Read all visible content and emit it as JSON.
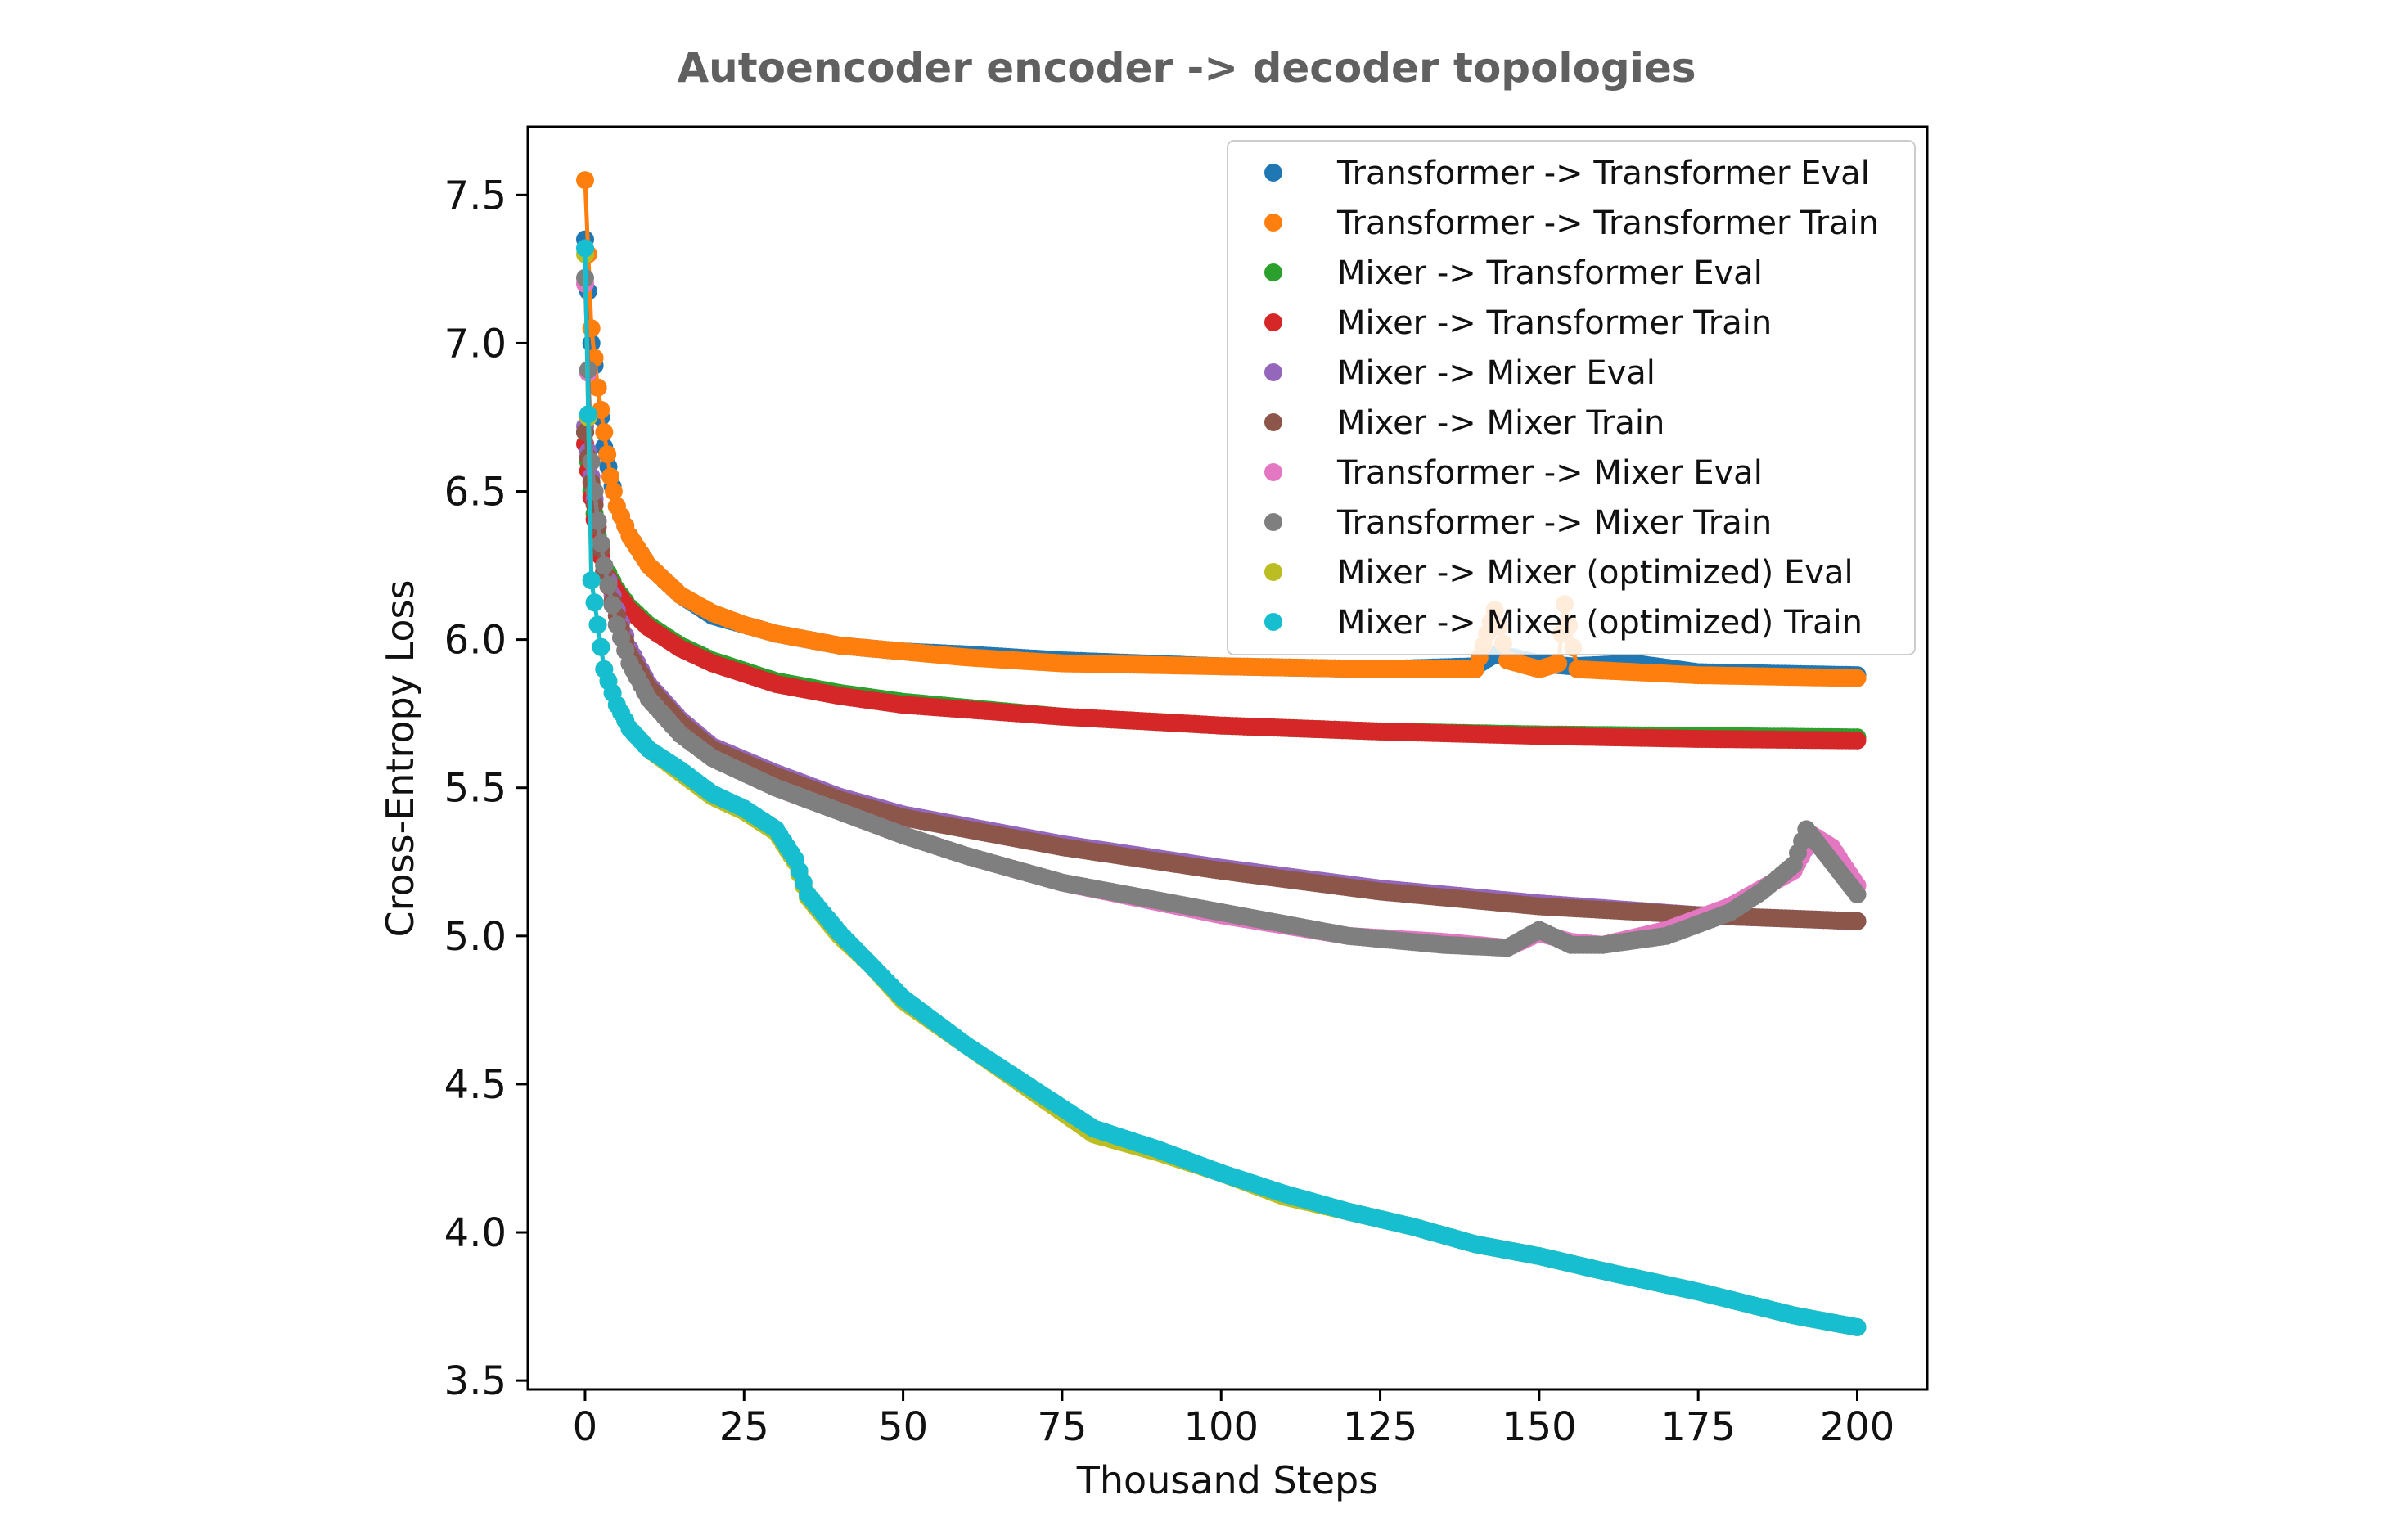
{
  "chart_data": {
    "type": "line",
    "title": "Autoencoder encoder -> decoder topologies",
    "xlabel": "Thousand Steps",
    "ylabel": "Cross-Entropy Loss",
    "xlim": [
      -9,
      211
    ],
    "ylim": [
      3.47,
      7.73
    ],
    "xticks": [
      0,
      25,
      50,
      75,
      100,
      125,
      150,
      175,
      200
    ],
    "yticks": [
      3.5,
      4.0,
      4.5,
      5.0,
      5.5,
      6.0,
      6.5,
      7.0,
      7.5
    ],
    "grid": false,
    "legend_position": "top-right",
    "series": [
      {
        "name": "Transformer -> Transformer Eval",
        "color": "#1f77b4",
        "x": [
          0,
          1,
          2,
          3,
          5,
          7,
          10,
          15,
          20,
          25,
          30,
          40,
          50,
          60,
          75,
          100,
          125,
          140,
          143,
          146,
          150,
          155,
          165,
          175,
          200
        ],
        "y": [
          7.35,
          7.0,
          6.85,
          6.65,
          6.45,
          6.35,
          6.25,
          6.15,
          6.08,
          6.05,
          6.02,
          5.98,
          5.96,
          5.95,
          5.93,
          5.91,
          5.9,
          5.91,
          5.95,
          5.94,
          5.92,
          5.91,
          5.92,
          5.89,
          5.88
        ]
      },
      {
        "name": "Transformer -> Transformer Train",
        "color": "#ff7f0e",
        "x": [
          0,
          1,
          2,
          3,
          4,
          5,
          7,
          10,
          15,
          20,
          25,
          30,
          40,
          50,
          60,
          75,
          100,
          125,
          140,
          143,
          145,
          150,
          153,
          154,
          156,
          175,
          200
        ],
        "y": [
          7.55,
          7.05,
          6.85,
          6.7,
          6.55,
          6.45,
          6.35,
          6.25,
          6.15,
          6.09,
          6.05,
          6.02,
          5.98,
          5.96,
          5.94,
          5.92,
          5.91,
          5.9,
          5.9,
          6.1,
          5.93,
          5.9,
          5.92,
          6.12,
          5.9,
          5.88,
          5.87
        ]
      },
      {
        "name": "Mixer -> Transformer Eval",
        "color": "#2ca02c",
        "x": [
          0,
          1,
          2,
          3,
          5,
          7,
          10,
          15,
          20,
          30,
          40,
          50,
          75,
          100,
          125,
          150,
          175,
          200
        ],
        "y": [
          6.7,
          6.5,
          6.35,
          6.25,
          6.17,
          6.11,
          6.05,
          5.98,
          5.93,
          5.86,
          5.82,
          5.79,
          5.74,
          5.71,
          5.69,
          5.68,
          5.675,
          5.67
        ]
      },
      {
        "name": "Mixer -> Transformer Train",
        "color": "#d62728",
        "x": [
          0,
          1,
          2,
          3,
          5,
          7,
          10,
          15,
          20,
          30,
          40,
          50,
          75,
          100,
          125,
          150,
          175,
          200
        ],
        "y": [
          6.66,
          6.48,
          6.33,
          6.23,
          6.16,
          6.1,
          6.04,
          5.97,
          5.92,
          5.85,
          5.81,
          5.78,
          5.74,
          5.71,
          5.69,
          5.675,
          5.665,
          5.66
        ]
      },
      {
        "name": "Mixer -> Mixer Eval",
        "color": "#9467bd",
        "x": [
          0,
          1,
          2,
          3,
          5,
          7,
          10,
          15,
          20,
          30,
          40,
          50,
          75,
          100,
          125,
          150,
          175,
          200
        ],
        "y": [
          6.72,
          6.55,
          6.4,
          6.25,
          6.1,
          5.97,
          5.85,
          5.73,
          5.64,
          5.55,
          5.47,
          5.41,
          5.31,
          5.23,
          5.16,
          5.11,
          5.07,
          5.05
        ]
      },
      {
        "name": "Mixer -> Mixer Train",
        "color": "#8c564b",
        "x": [
          0,
          1,
          2,
          3,
          5,
          7,
          10,
          15,
          20,
          30,
          40,
          50,
          75,
          100,
          125,
          150,
          175,
          200
        ],
        "y": [
          6.7,
          6.53,
          6.38,
          6.23,
          6.08,
          5.95,
          5.84,
          5.72,
          5.63,
          5.54,
          5.46,
          5.4,
          5.3,
          5.22,
          5.15,
          5.1,
          5.07,
          5.05
        ]
      },
      {
        "name": "Transformer -> Mixer Eval",
        "color": "#e377c2",
        "x": [
          0,
          1,
          2,
          3,
          5,
          7,
          10,
          15,
          20,
          30,
          40,
          50,
          60,
          75,
          100,
          120,
          135,
          145,
          150,
          155,
          160,
          170,
          180,
          185,
          190,
          193,
          196,
          200
        ],
        "y": [
          7.2,
          6.6,
          6.4,
          6.25,
          6.05,
          5.92,
          5.8,
          5.68,
          5.6,
          5.5,
          5.42,
          5.34,
          5.27,
          5.18,
          5.07,
          5.0,
          4.98,
          4.96,
          5.01,
          4.98,
          4.97,
          5.02,
          5.1,
          5.16,
          5.22,
          5.34,
          5.3,
          5.17
        ]
      },
      {
        "name": "Transformer -> Mixer Train",
        "color": "#7f7f7f",
        "x": [
          0,
          1,
          2,
          3,
          5,
          7,
          10,
          15,
          20,
          30,
          40,
          50,
          60,
          75,
          100,
          120,
          135,
          145,
          150,
          155,
          160,
          170,
          180,
          185,
          190,
          192,
          196,
          200
        ],
        "y": [
          7.22,
          6.6,
          6.4,
          6.25,
          6.05,
          5.92,
          5.8,
          5.68,
          5.6,
          5.5,
          5.42,
          5.34,
          5.27,
          5.18,
          5.08,
          5.0,
          4.97,
          4.96,
          5.02,
          4.97,
          4.97,
          5.0,
          5.08,
          5.15,
          5.24,
          5.36,
          5.25,
          5.14
        ]
      },
      {
        "name": "Mixer -> Mixer (optimized) Eval",
        "color": "#bcbd22",
        "x": [
          0,
          1,
          2,
          3,
          5,
          7,
          10,
          15,
          20,
          25,
          30,
          33,
          35,
          40,
          45,
          50,
          60,
          70,
          80,
          90,
          100,
          110,
          120,
          130,
          140,
          150,
          160,
          175,
          190,
          200
        ],
        "y": [
          7.3,
          6.2,
          6.05,
          5.9,
          5.78,
          5.7,
          5.63,
          5.55,
          5.47,
          5.42,
          5.35,
          5.25,
          5.13,
          5.0,
          4.9,
          4.78,
          4.63,
          4.48,
          4.33,
          4.27,
          4.2,
          4.12,
          4.07,
          4.02,
          3.96,
          3.92,
          3.87,
          3.8,
          3.72,
          3.68
        ]
      },
      {
        "name": "Mixer -> Mixer (optimized) Train",
        "color": "#17becf",
        "x": [
          0,
          1,
          2,
          3,
          5,
          7,
          10,
          15,
          20,
          25,
          30,
          33,
          35,
          40,
          45,
          50,
          60,
          70,
          80,
          90,
          100,
          110,
          120,
          130,
          140,
          150,
          160,
          175,
          190,
          200
        ],
        "y": [
          7.32,
          6.2,
          6.05,
          5.9,
          5.78,
          5.7,
          5.63,
          5.56,
          5.48,
          5.43,
          5.36,
          5.26,
          5.14,
          5.01,
          4.9,
          4.79,
          4.63,
          4.49,
          4.35,
          4.28,
          4.2,
          4.13,
          4.07,
          4.02,
          3.96,
          3.92,
          3.87,
          3.8,
          3.72,
          3.68
        ]
      }
    ]
  }
}
